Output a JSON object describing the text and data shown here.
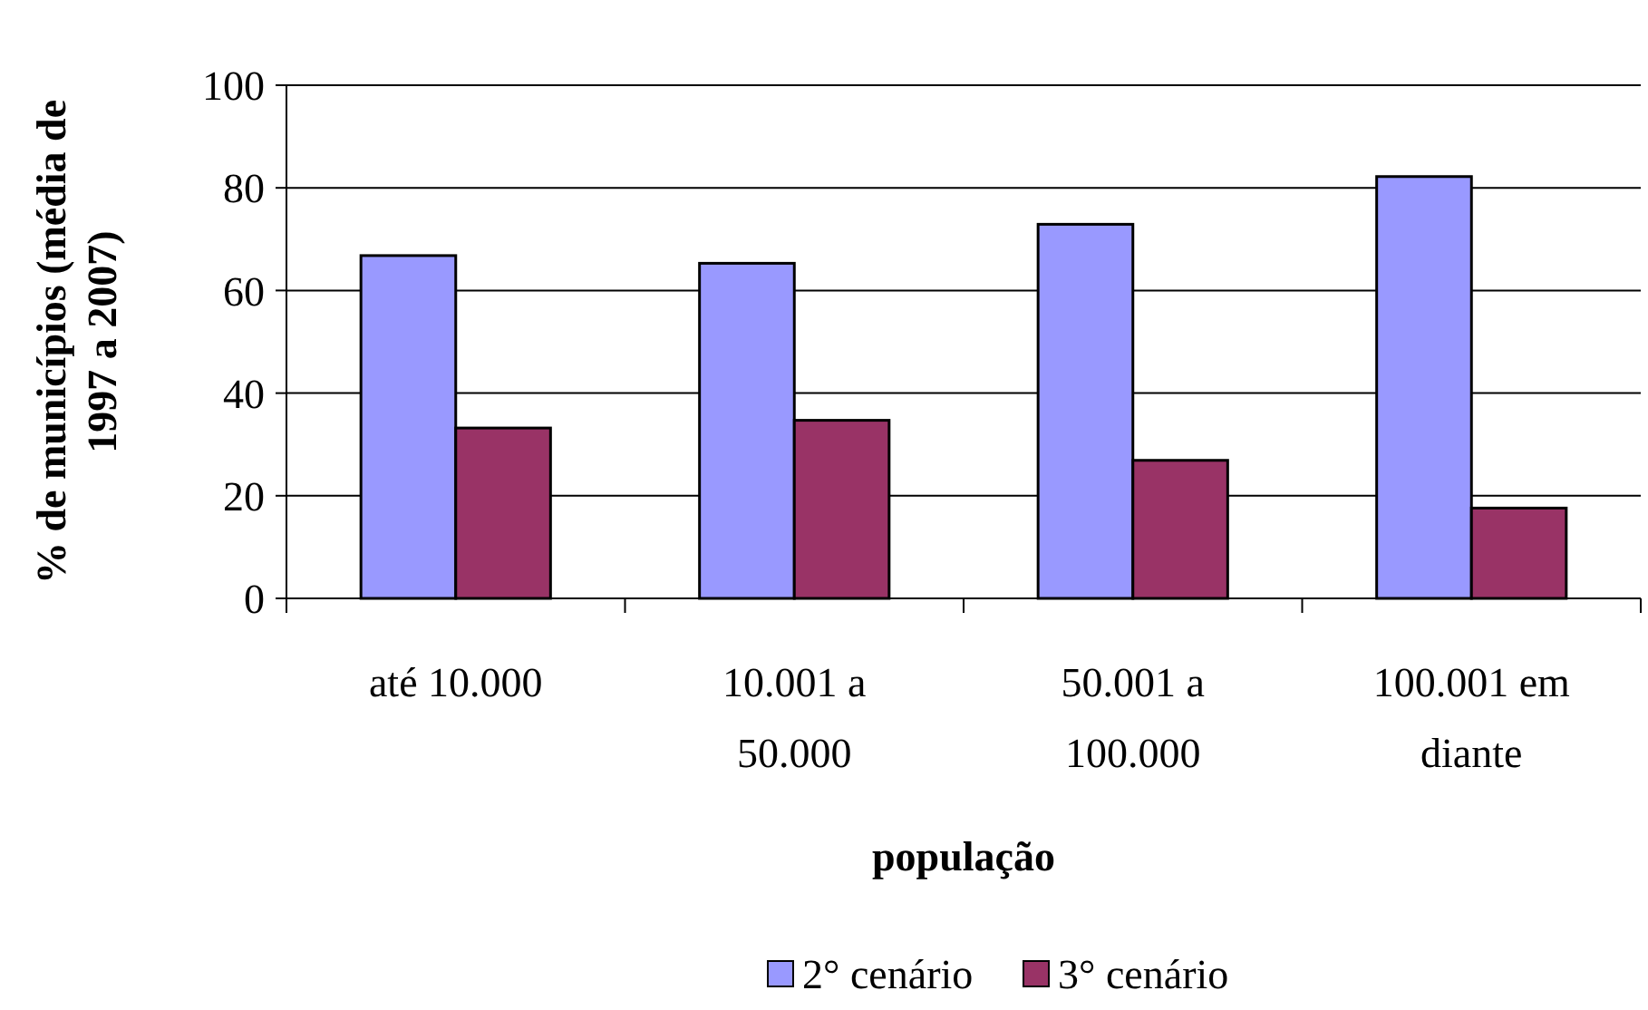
{
  "chart_data": {
    "type": "bar",
    "xlabel": "população",
    "ylabel": "% de municípios (média de 1997 a 2007)",
    "categories": [
      "até 10.000",
      "10.001 a 50.000",
      "50.001 a 100.000",
      "100.001 em diante"
    ],
    "series": [
      {
        "name": "2° cenário",
        "color": "#9999ff",
        "values": [
          66.8,
          65.3,
          72.9,
          82.2
        ]
      },
      {
        "name": "3° cenário",
        "color": "#993366",
        "values": [
          33.2,
          34.7,
          26.9,
          17.6
        ]
      }
    ],
    "ylim": [
      0,
      100
    ],
    "yticks": [
      0,
      20,
      40,
      60,
      80,
      100
    ],
    "grid": "y",
    "legend": "bottom"
  }
}
